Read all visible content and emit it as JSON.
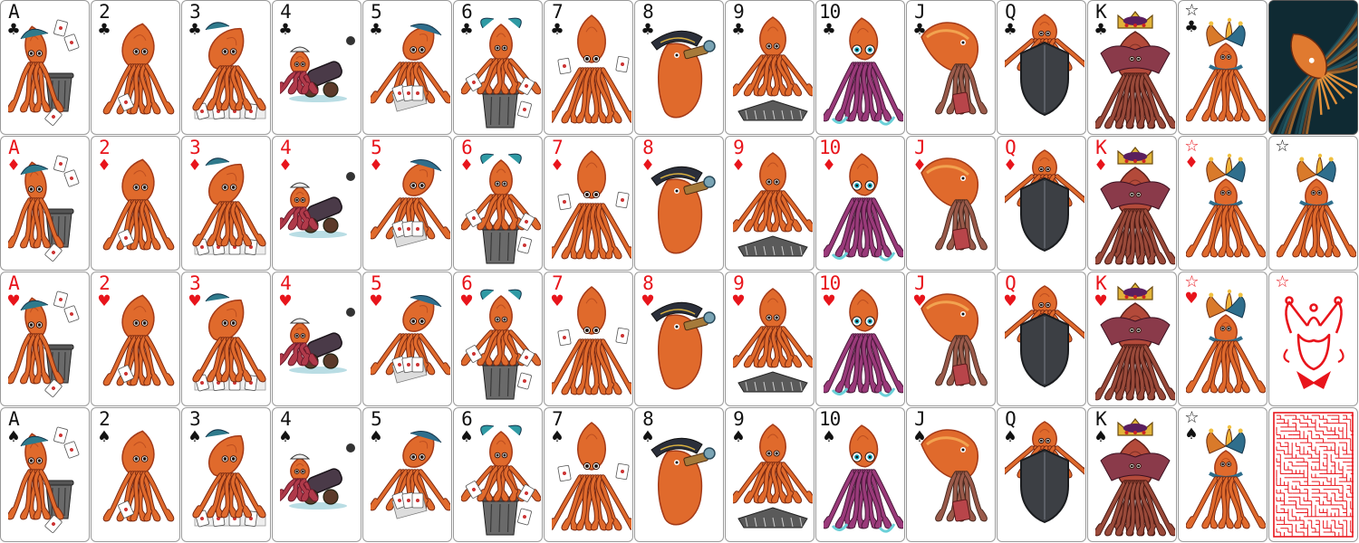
{
  "sheet": {
    "rows": [
      {
        "suit_name": "clubs",
        "suit_symbol": "♣",
        "color": "#111111",
        "cards": [
          {
            "rank": "A",
            "art": "squid-trash-can"
          },
          {
            "rank": "2",
            "art": "squid-card"
          },
          {
            "rank": "3",
            "art": "squid-cards-spread"
          },
          {
            "rank": "4",
            "art": "squid-cannon"
          },
          {
            "rank": "5",
            "art": "squid-holding-cards"
          },
          {
            "rank": "6",
            "art": "squid-trash-can-cards"
          },
          {
            "rank": "7",
            "art": "squid-standing-cards"
          },
          {
            "rank": "8",
            "art": "squid-pirate-telescope"
          },
          {
            "rank": "9",
            "art": "squid-card-fan"
          },
          {
            "rank": "10",
            "art": "squid-big-eyes"
          },
          {
            "rank": "J",
            "art": "squid-cuttlefish"
          },
          {
            "rank": "Q",
            "art": "squid-shield"
          },
          {
            "rank": "K",
            "art": "squid-crown"
          },
          {
            "rank": "",
            "index_symbol": "☆",
            "suit_symbol": "♣",
            "art": "squid-jester"
          }
        ],
        "extra": {
          "kind": "card-back",
          "art": "squid-swirl-back"
        }
      },
      {
        "suit_name": "diamonds",
        "suit_symbol": "♦",
        "color": "#e8141b",
        "cards": [
          {
            "rank": "A",
            "art": "squid-trash-can"
          },
          {
            "rank": "2",
            "art": "squid-card"
          },
          {
            "rank": "3",
            "art": "squid-cards-spread"
          },
          {
            "rank": "4",
            "art": "squid-cannon"
          },
          {
            "rank": "5",
            "art": "squid-holding-cards"
          },
          {
            "rank": "6",
            "art": "squid-trash-can-cards"
          },
          {
            "rank": "7",
            "art": "squid-standing-cards"
          },
          {
            "rank": "8",
            "art": "squid-pirate-telescope"
          },
          {
            "rank": "9",
            "art": "squid-card-fan"
          },
          {
            "rank": "10",
            "art": "squid-big-eyes"
          },
          {
            "rank": "J",
            "art": "squid-cuttlefish"
          },
          {
            "rank": "Q",
            "art": "squid-shield"
          },
          {
            "rank": "K",
            "art": "squid-crown"
          },
          {
            "rank": "",
            "index_symbol": "☆",
            "suit_symbol": "♦",
            "art": "squid-jester"
          }
        ],
        "extra": {
          "kind": "joker",
          "index_symbol": "☆",
          "color": "#111111",
          "art": "squid-jester"
        }
      },
      {
        "suit_name": "hearts",
        "suit_symbol": "♥",
        "color": "#e8141b",
        "cards": [
          {
            "rank": "A",
            "art": "squid-trash-can"
          },
          {
            "rank": "2",
            "art": "squid-card"
          },
          {
            "rank": "3",
            "art": "squid-cards-spread"
          },
          {
            "rank": "4",
            "art": "squid-cannon"
          },
          {
            "rank": "5",
            "art": "squid-holding-cards"
          },
          {
            "rank": "6",
            "art": "squid-trash-can-cards"
          },
          {
            "rank": "7",
            "art": "squid-standing-cards"
          },
          {
            "rank": "8",
            "art": "squid-pirate-telescope"
          },
          {
            "rank": "9",
            "art": "squid-card-fan"
          },
          {
            "rank": "10",
            "art": "squid-big-eyes"
          },
          {
            "rank": "J",
            "art": "squid-cuttlefish"
          },
          {
            "rank": "Q",
            "art": "squid-shield"
          },
          {
            "rank": "K",
            "art": "squid-crown"
          },
          {
            "rank": "",
            "index_symbol": "☆",
            "suit_symbol": "♥",
            "art": "squid-jester"
          }
        ],
        "extra": {
          "kind": "joker-red-outline",
          "index_symbol": "☆",
          "color": "#e8141b",
          "art": "jester-outline"
        }
      },
      {
        "suit_name": "spades",
        "suit_symbol": "♠",
        "color": "#111111",
        "cards": [
          {
            "rank": "A",
            "art": "squid-trash-can"
          },
          {
            "rank": "2",
            "art": "squid-card"
          },
          {
            "rank": "3",
            "art": "squid-cards-spread"
          },
          {
            "rank": "4",
            "art": "squid-cannon"
          },
          {
            "rank": "5",
            "art": "squid-holding-cards"
          },
          {
            "rank": "6",
            "art": "squid-trash-can-cards"
          },
          {
            "rank": "7",
            "art": "squid-standing-cards"
          },
          {
            "rank": "8",
            "art": "squid-pirate-telescope"
          },
          {
            "rank": "9",
            "art": "squid-card-fan"
          },
          {
            "rank": "10",
            "art": "squid-big-eyes"
          },
          {
            "rank": "J",
            "art": "squid-cuttlefish"
          },
          {
            "rank": "Q",
            "art": "squid-shield"
          },
          {
            "rank": "K",
            "art": "squid-crown"
          },
          {
            "rank": "",
            "index_symbol": "☆",
            "suit_symbol": "♠",
            "art": "squid-jester"
          }
        ],
        "extra": {
          "kind": "maze-back",
          "color": "#e8141b",
          "art": "maze"
        }
      }
    ],
    "colors": {
      "black_suit": "#111111",
      "red_suit": "#e8141b",
      "squid_orange": "#e06a2c",
      "squid_dark": "#a33a18",
      "card_border": "#9a9a9a",
      "back_bg": "#0f2a33"
    }
  }
}
